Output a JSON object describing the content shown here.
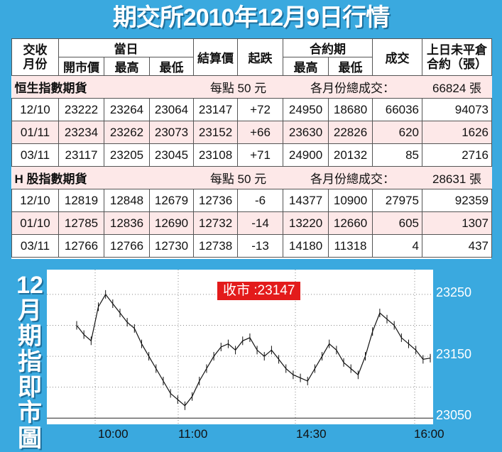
{
  "title": "期交所2010年12月9日行情",
  "table": {
    "headers": {
      "contract_month": "交收\n月份",
      "today": "當日",
      "open": "開市價",
      "high": "最高",
      "low": "最低",
      "settle": "結算價",
      "change": "起跌",
      "contract_period": "合約期",
      "period_high": "最高",
      "period_low": "最低",
      "volume": "成交",
      "open_interest": "上日未平倉\n合約（張）"
    },
    "sections": [
      {
        "name": "恒生指數期貨",
        "per_point": "每點 50 元",
        "total_label": "各月份總成交：",
        "total_value": "66824 張",
        "rows": [
          {
            "month": "12/10",
            "open": "23222",
            "high": "23264",
            "low": "23064",
            "settle": "23147",
            "change": "+72",
            "phigh": "24950",
            "plow": "18680",
            "volume": "66036",
            "oi": "94073"
          },
          {
            "month": "01/11",
            "open": "23234",
            "high": "23262",
            "low": "23073",
            "settle": "23152",
            "change": "+66",
            "phigh": "23630",
            "plow": "22826",
            "volume": "620",
            "oi": "1626"
          },
          {
            "month": "03/11",
            "open": "23117",
            "high": "23205",
            "low": "23045",
            "settle": "23108",
            "change": "+71",
            "phigh": "24900",
            "plow": "20132",
            "volume": "85",
            "oi": "2716"
          }
        ]
      },
      {
        "name": "H 股指數期貨",
        "per_point": "每點 50 元",
        "total_label": "各月份總成交：",
        "total_value": "28631 張",
        "rows": [
          {
            "month": "12/10",
            "open": "12819",
            "high": "12848",
            "low": "12679",
            "settle": "12736",
            "change": "-6",
            "phigh": "14377",
            "plow": "10900",
            "volume": "27975",
            "oi": "92359"
          },
          {
            "month": "01/10",
            "open": "12785",
            "high": "12836",
            "low": "12690",
            "settle": "12732",
            "change": "-14",
            "phigh": "13220",
            "plow": "12660",
            "volume": "605",
            "oi": "1307"
          },
          {
            "month": "03/11",
            "open": "12766",
            "high": "12766",
            "low": "12730",
            "settle": "12738",
            "change": "-13",
            "phigh": "14180",
            "plow": "11318",
            "volume": "4",
            "oi": "437"
          }
        ]
      }
    ]
  },
  "side_title": [
    "12",
    "月",
    "期",
    "指",
    "即",
    "市",
    "圖"
  ],
  "chart_data": {
    "type": "line",
    "close_label": "收市 :23147",
    "y_ticks": [
      "23250",
      "23150",
      "23050"
    ],
    "x_ticks": [
      "10:00",
      "11:00",
      "14:30",
      "16:00"
    ],
    "ylim": [
      23040,
      23290
    ],
    "x": [
      "09:45",
      "09:50",
      "09:55",
      "10:00",
      "10:05",
      "10:10",
      "10:15",
      "10:20",
      "10:25",
      "10:30",
      "10:35",
      "10:40",
      "10:45",
      "10:50",
      "10:55",
      "11:00",
      "11:05",
      "11:10",
      "11:15",
      "11:20",
      "11:25",
      "11:30",
      "11:35",
      "11:40",
      "11:45",
      "11:50",
      "11:55",
      "12:00",
      "14:30",
      "14:35",
      "14:40",
      "14:45",
      "14:50",
      "14:55",
      "15:00",
      "15:05",
      "15:10",
      "15:15",
      "15:20",
      "15:25",
      "15:30",
      "15:35",
      "15:40",
      "15:45",
      "15:50",
      "15:55",
      "16:00",
      "16:05",
      "16:10",
      "16:15"
    ],
    "series": [
      {
        "values": [
          23200,
          23185,
          23175,
          23230,
          23250,
          23235,
          23220,
          23205,
          23195,
          23170,
          23150,
          23130,
          23110,
          23090,
          23080,
          23070,
          23085,
          23110,
          23130,
          23150,
          23165,
          23170,
          23160,
          23175,
          23180,
          23160,
          23150,
          23160,
          23145,
          23130,
          23120,
          23115,
          23110,
          23130,
          23150,
          23170,
          23160,
          23140,
          23130,
          23120,
          23150,
          23190,
          23220,
          23210,
          23200,
          23180,
          23170,
          23160,
          23145,
          23147
        ]
      }
    ]
  }
}
